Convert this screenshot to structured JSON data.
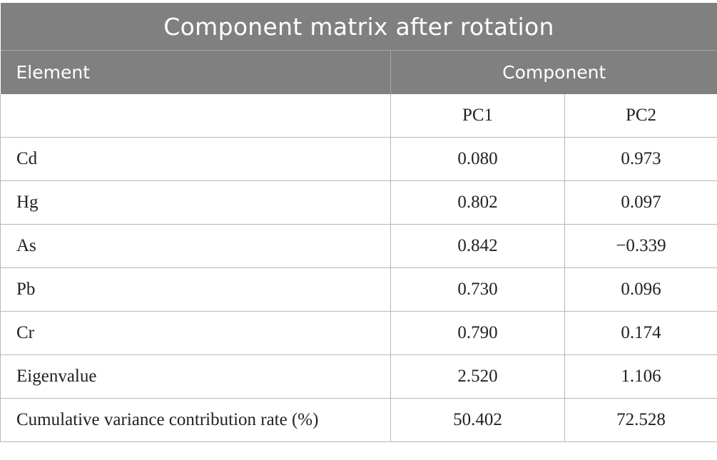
{
  "table": {
    "title": "Component matrix after rotation",
    "header": {
      "element": "Element",
      "component": "Component"
    },
    "subheader": {
      "blank": "",
      "pc1": "PC1",
      "pc2": "PC2"
    },
    "rows": [
      {
        "label": "Cd",
        "pc1": "0.080",
        "pc2": "0.973"
      },
      {
        "label": "Hg",
        "pc1": "0.802",
        "pc2": "0.097"
      },
      {
        "label": "As",
        "pc1": "0.842",
        "pc2": "−0.339"
      },
      {
        "label": "Pb",
        "pc1": "0.730",
        "pc2": "0.096"
      },
      {
        "label": "Cr",
        "pc1": "0.790",
        "pc2": "0.174"
      },
      {
        "label": "Eigenvalue",
        "pc1": "2.520",
        "pc2": "1.106"
      },
      {
        "label": "Cumulative variance contribution rate (%)",
        "pc1": "50.402",
        "pc2": "72.528"
      }
    ]
  },
  "colors": {
    "header_bg": "#808080",
    "header_text": "#ffffff",
    "grid": "#b8b8b8"
  }
}
